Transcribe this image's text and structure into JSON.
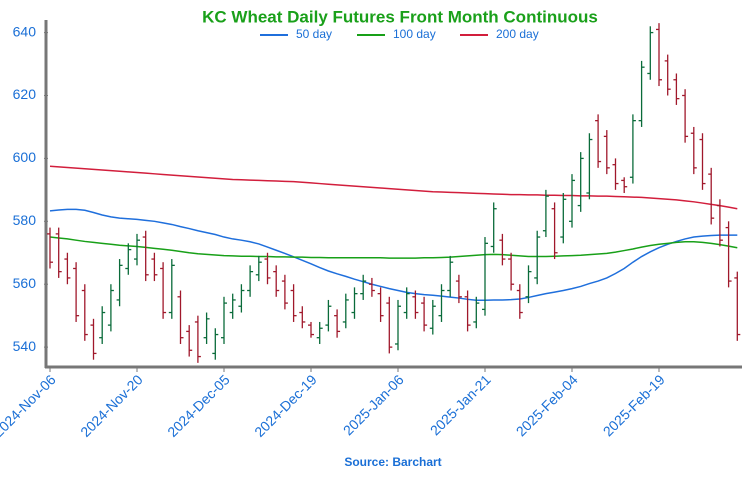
{
  "chart_data": {
    "type": "ohlc",
    "title": "KC Wheat Daily Futures Front Month Continuous",
    "source": "Source: Barchart",
    "up_color": "#0a6b3a",
    "down_color": "#a0182b",
    "categories": [
      "2024-Nov-06",
      null,
      null,
      null,
      null,
      null,
      null,
      null,
      null,
      null,
      "2024-Nov-20",
      null,
      null,
      null,
      null,
      null,
      null,
      null,
      null,
      null,
      "2024-Dec-05",
      null,
      null,
      null,
      null,
      null,
      null,
      null,
      null,
      null,
      "2024-Dec-19",
      null,
      null,
      null,
      null,
      null,
      null,
      null,
      null,
      null,
      "2025-Jan-06",
      null,
      null,
      null,
      null,
      null,
      null,
      null,
      null,
      null,
      "2025-Jan-21",
      null,
      null,
      null,
      null,
      null,
      null,
      null,
      null,
      null,
      "2025-Feb-04",
      null,
      null,
      null,
      null,
      null,
      null,
      null,
      null,
      null,
      "2025-Feb-19",
      null,
      null,
      null,
      null,
      null,
      null,
      null,
      null,
      null
    ],
    "open": [
      576,
      576,
      568,
      565,
      558,
      547,
      543,
      547,
      555,
      565,
      568,
      575,
      568,
      565,
      551,
      556,
      545,
      548,
      543,
      538,
      543,
      551,
      553,
      558,
      563,
      568,
      564,
      561,
      558,
      551,
      547,
      543,
      547,
      550,
      548,
      551,
      557,
      560,
      557,
      554,
      541,
      551,
      556,
      554,
      546,
      550,
      558,
      561,
      556,
      548,
      552,
      572,
      574,
      568,
      558,
      556,
      562,
      577,
      584,
      575,
      580,
      585,
      589,
      612,
      607,
      598,
      593,
      594,
      612,
      627,
      641,
      631,
      625,
      620,
      608,
      606,
      595,
      585,
      578,
      562
    ],
    "high": [
      578,
      578,
      570,
      567,
      560,
      549,
      553,
      560,
      568,
      573,
      576,
      577,
      570,
      567,
      568,
      558,
      547,
      550,
      551,
      546,
      556,
      557,
      560,
      566,
      569,
      570,
      566,
      563,
      560,
      553,
      548,
      548,
      555,
      552,
      557,
      559,
      563,
      562,
      559,
      556,
      555,
      559,
      558,
      556,
      555,
      560,
      569,
      563,
      558,
      556,
      575,
      586,
      576,
      570,
      560,
      566,
      577,
      590,
      586,
      589,
      595,
      602,
      608,
      614,
      609,
      600,
      594,
      614,
      631,
      642,
      643,
      633,
      627,
      622,
      610,
      608,
      597,
      587,
      580,
      564
    ],
    "low": [
      565,
      562,
      560,
      548,
      542,
      536,
      541,
      545,
      553,
      563,
      566,
      561,
      561,
      549,
      549,
      541,
      537,
      535,
      541,
      536,
      541,
      549,
      551,
      556,
      561,
      560,
      556,
      552,
      548,
      546,
      543,
      541,
      545,
      543,
      546,
      549,
      555,
      556,
      548,
      538,
      539,
      549,
      549,
      545,
      544,
      548,
      556,
      554,
      545,
      546,
      550,
      570,
      566,
      558,
      549,
      554,
      560,
      575,
      568,
      573,
      578,
      583,
      587,
      597,
      595,
      590,
      589,
      592,
      610,
      625,
      623,
      620,
      617,
      605,
      595,
      590,
      579,
      572,
      559,
      542
    ],
    "close": [
      567,
      564,
      562,
      550,
      544,
      538,
      551,
      558,
      566,
      571,
      574,
      563,
      563,
      551,
      566,
      543,
      539,
      537,
      549,
      544,
      554,
      555,
      558,
      564,
      567,
      562,
      558,
      554,
      550,
      548,
      544,
      546,
      553,
      545,
      555,
      557,
      561,
      558,
      550,
      540,
      553,
      557,
      551,
      547,
      553,
      558,
      567,
      556,
      547,
      554,
      573,
      584,
      568,
      560,
      551,
      564,
      575,
      588,
      570,
      587,
      593,
      600,
      606,
      599,
      597,
      592,
      591,
      612,
      629,
      640,
      625,
      622,
      619,
      607,
      597,
      592,
      581,
      574,
      561,
      544
    ],
    "series": [
      {
        "name": "50 day",
        "color": "#1f6fdc",
        "values": [
          583.3,
          583.6,
          583.8,
          583.8,
          583.5,
          582.8,
          582,
          581.4,
          581,
          580.8,
          580.6,
          580.3,
          580,
          579.5,
          579,
          578.3,
          577.7,
          577,
          576.4,
          575.8,
          575,
          574.4,
          574,
          573.5,
          572.8,
          571.8,
          570.8,
          569.8,
          568.7,
          567.6,
          566.5,
          565.3,
          564.2,
          563.3,
          562.5,
          561.6,
          560.8,
          560,
          559.3,
          558.6,
          558,
          557.4,
          557,
          556.7,
          556.5,
          556.2,
          555.9,
          555.6,
          555.2,
          554.9,
          554.9,
          555,
          555,
          555.1,
          555.3,
          555.8,
          556.4,
          557,
          557.5,
          558,
          558.6,
          559.3,
          560.2,
          561,
          562,
          563.4,
          565,
          567,
          568.8,
          570.3,
          571.6,
          572.7,
          573.6,
          574.4,
          575,
          575.3,
          575.5,
          575.6,
          575.6,
          575.6
        ]
      },
      {
        "name": "100 day",
        "color": "#18a018",
        "values": [
          575,
          574.7,
          574.4,
          574,
          573.6,
          573.3,
          573,
          572.7,
          572.4,
          572.2,
          572,
          571.7,
          571.4,
          571.1,
          570.8,
          570.4,
          570,
          569.7,
          569.5,
          569.3,
          569.1,
          569,
          568.9,
          568.9,
          568.8,
          568.8,
          568.7,
          568.7,
          568.6,
          568.6,
          568.5,
          568.5,
          568.4,
          568.4,
          568.4,
          568.4,
          568.4,
          568.4,
          568.4,
          568.3,
          568.3,
          568.3,
          568.3,
          568.4,
          568.4,
          568.5,
          568.6,
          568.8,
          569,
          569.2,
          569.4,
          569.5,
          569.4,
          569.2,
          569,
          568.8,
          568.8,
          568.8,
          568.9,
          569,
          569.1,
          569.2,
          569.4,
          569.6,
          569.8,
          570.2,
          570.7,
          571.2,
          571.8,
          572.3,
          572.7,
          573,
          573.3,
          573.5,
          573.5,
          573.3,
          573,
          572.6,
          572.1,
          571.6
        ]
      },
      {
        "name": "200 day",
        "color": "#d21e3c",
        "values": [
          597.5,
          597.3,
          597.1,
          596.9,
          596.7,
          596.5,
          596.3,
          596.1,
          595.9,
          595.7,
          595.5,
          595.3,
          595.1,
          594.9,
          594.7,
          594.5,
          594.3,
          594.1,
          593.9,
          593.7,
          593.5,
          593.3,
          593.2,
          593.1,
          593,
          592.9,
          592.8,
          592.7,
          592.6,
          592.4,
          592.2,
          592,
          591.8,
          591.6,
          591.4,
          591.2,
          591,
          590.8,
          590.6,
          590.4,
          590.2,
          590,
          589.8,
          589.6,
          589.4,
          589.3,
          589.2,
          589.1,
          589,
          588.9,
          588.8,
          588.7,
          588.6,
          588.5,
          588.5,
          588.4,
          588.4,
          588.3,
          588.3,
          588.2,
          588.2,
          588.1,
          588.1,
          588,
          588,
          587.9,
          587.8,
          587.7,
          587.6,
          587.4,
          587.2,
          587,
          586.8,
          586.5,
          586.2,
          585.8,
          585.4,
          585,
          584.5,
          584
        ]
      }
    ],
    "ylim": [
      534,
      644
    ],
    "yticks": [
      540,
      560,
      580,
      600,
      620,
      640
    ]
  }
}
